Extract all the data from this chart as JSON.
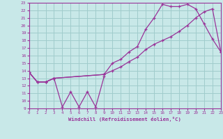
{
  "xlabel": "Windchill (Refroidissement éolien,°C)",
  "xlim": [
    0,
    23
  ],
  "ylim": [
    9,
    23
  ],
  "xticks": [
    0,
    1,
    2,
    3,
    4,
    5,
    6,
    7,
    8,
    9,
    10,
    11,
    12,
    13,
    14,
    15,
    16,
    17,
    18,
    19,
    20,
    21,
    22,
    23
  ],
  "yticks": [
    9,
    10,
    11,
    12,
    13,
    14,
    15,
    16,
    17,
    18,
    19,
    20,
    21,
    22,
    23
  ],
  "background_color": "#c8e8e8",
  "grid_color": "#a0cccc",
  "line_color": "#993399",
  "line1_x": [
    0,
    1,
    2,
    3,
    4,
    5,
    6,
    7,
    8,
    9
  ],
  "line1_y": [
    13.8,
    12.5,
    12.5,
    13.0,
    9.2,
    11.2,
    9.2,
    11.2,
    9.2,
    13.2
  ],
  "line2_x": [
    0,
    1,
    2,
    3,
    9,
    10,
    11,
    12,
    13,
    14,
    15,
    16,
    17,
    18,
    19,
    20,
    21,
    22,
    23
  ],
  "line2_y": [
    13.8,
    12.5,
    12.5,
    13.0,
    13.5,
    14.0,
    14.5,
    15.2,
    15.8,
    16.8,
    17.5,
    18.0,
    18.5,
    19.2,
    20.0,
    21.0,
    21.8,
    22.2,
    16.5
  ],
  "line3_x": [
    0,
    1,
    2,
    3,
    9,
    10,
    11,
    12,
    13,
    14,
    15,
    16,
    17,
    18,
    19,
    20,
    21,
    22,
    23
  ],
  "line3_y": [
    13.8,
    12.5,
    12.5,
    13.0,
    13.5,
    15.0,
    15.5,
    16.5,
    17.2,
    19.5,
    21.0,
    22.8,
    22.5,
    22.5,
    22.8,
    22.2,
    20.2,
    18.2,
    16.5
  ]
}
